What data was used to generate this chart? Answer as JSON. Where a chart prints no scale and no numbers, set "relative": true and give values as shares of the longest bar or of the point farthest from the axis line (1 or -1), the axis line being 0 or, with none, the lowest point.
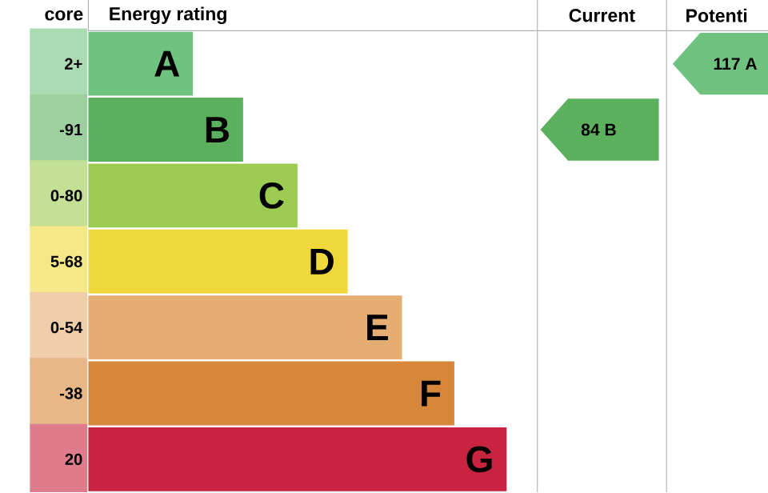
{
  "chart_data": {
    "type": "bar",
    "orientation": "horizontal",
    "relative": true,
    "ylabel": "core",
    "xlabel": "Energy rating",
    "categories": [
      "2+",
      "-91",
      "0-80",
      "5-68",
      "0-54",
      "-38",
      "20"
    ],
    "values": [
      0.25,
      0.37,
      0.5,
      0.62,
      0.75,
      0.875,
      1
    ],
    "colors": [
      "#6fc27f",
      "#5bb05d",
      "#9bcb50",
      "#f0d83a",
      "#e6ad72",
      "#d6873a",
      "#c8243f"
    ],
    "annotations": [
      {
        "text": "A",
        "x": 0.25,
        "y": "2+"
      },
      {
        "text": "B",
        "x": 0.37,
        "y": "-91"
      },
      {
        "text": "C",
        "x": 0.5,
        "y": "0-80"
      },
      {
        "text": "D",
        "x": 0.62,
        "y": "5-68"
      },
      {
        "text": "E",
        "x": 0.75,
        "y": "0-54"
      },
      {
        "text": "F",
        "x": 0.875,
        "y": "-38"
      },
      {
        "text": "G",
        "x": 1,
        "y": "20"
      },
      "Current",
      "Potenti",
      "84 B",
      "117 A"
    ]
  }
}
